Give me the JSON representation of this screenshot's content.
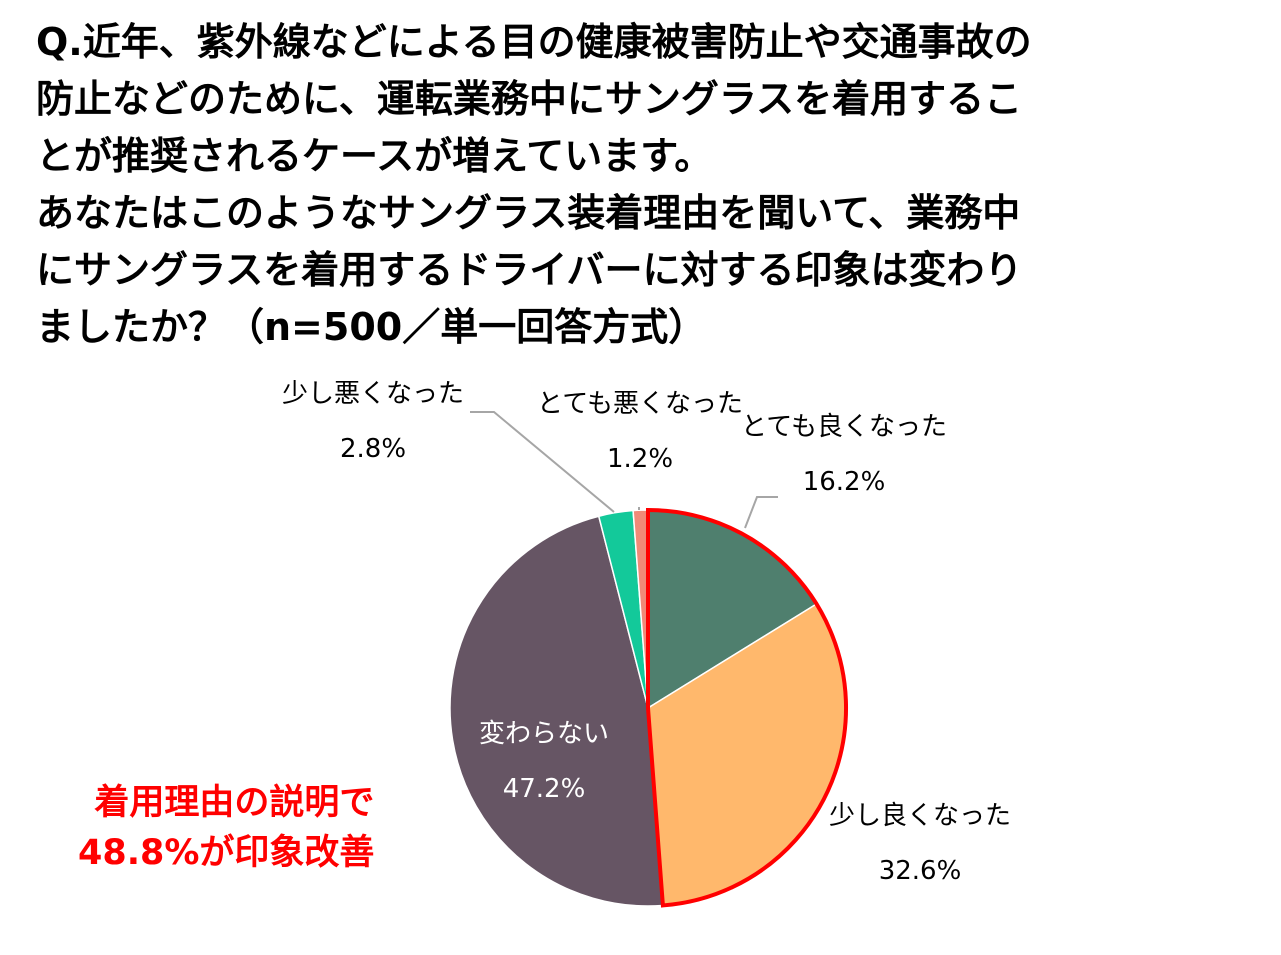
{
  "question": {
    "lines": [
      "Q.近年、紫外線などによる目の健康被害防止や交通事故の",
      "防止などのために、運転業務中にサングラスを着用するこ",
      "とが推奨されるケースが増えています。",
      "あなたはこのようなサングラス装着理由を聞いて、業務中",
      "にサングラスを着用するドライバーに対する印象は変わり",
      "ましたか？（n=500／単一回答方式）"
    ]
  },
  "callout": {
    "line1": "着用理由の説明で",
    "line2": "48.8%が印象改善",
    "color": "#ff0000"
  },
  "chart_data": {
    "type": "pie",
    "title": "",
    "start": "12 o'clock",
    "direction": "clockwise",
    "unit": "%",
    "highlight": {
      "slices": [
        "とても良くなった",
        "少し良くなった"
      ],
      "outline_color": "#ff0000"
    },
    "slices": [
      {
        "label": "とても良くなった",
        "value": 16.2,
        "display": "16.2%",
        "color": "#4f7f6e"
      },
      {
        "label": "少し良くなった",
        "value": 32.6,
        "display": "32.6%",
        "color": "#ffb86c"
      },
      {
        "label": "変わらない",
        "value": 47.2,
        "display": "47.2%",
        "color": "#665564"
      },
      {
        "label": "少し悪くなった",
        "value": 2.8,
        "display": "2.8%",
        "color": "#13c99a"
      },
      {
        "label": "とても悪くなった",
        "value": 1.2,
        "display": "1.2%",
        "color": "#f08a78"
      }
    ]
  }
}
